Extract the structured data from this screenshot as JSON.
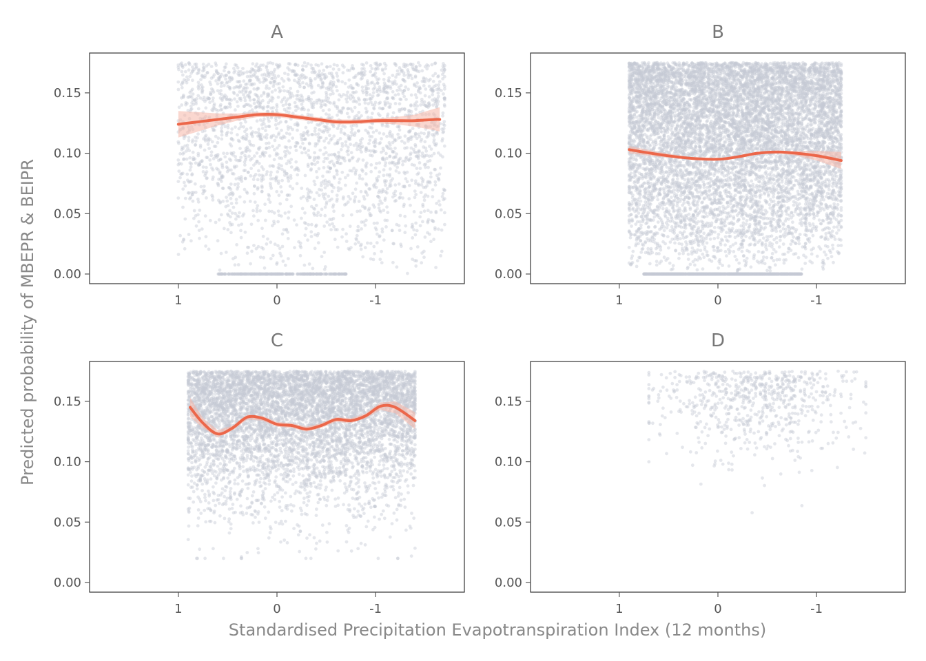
{
  "colors": {
    "points": "#c5c9d4",
    "smooth_line": "#ec674a",
    "ribbon": "#f6b7a7",
    "panel_border": "#333333",
    "tick": "#555555"
  },
  "chart_data": {
    "type": "scatter",
    "layout": "2x2 facets",
    "xlabel": "Standardised Precipitation Evapotranspiration Index (12 months)",
    "ylabel": "Predicted probability of MBEPR & BEIPR",
    "x_reversed": true,
    "xlim": [
      1.9,
      -1.9
    ],
    "ylim": [
      -0.008,
      0.183
    ],
    "x_ticks": [
      1,
      0,
      -1
    ],
    "x_tick_labels": [
      "1",
      "0",
      "-1"
    ],
    "y_ticks": [
      0,
      0.05,
      0.1,
      0.15
    ],
    "y_tick_labels": [
      "0.00",
      "0.05",
      "0.10",
      "0.15"
    ],
    "grid": false,
    "panels": [
      {
        "label": "A",
        "point_density": "moderate",
        "point_x_range": [
          1.0,
          -1.7
        ],
        "point_y_range": [
          0.0,
          0.175
        ],
        "smooth": {
          "x": [
            1.0,
            0.8,
            0.6,
            0.4,
            0.2,
            0.0,
            -0.2,
            -0.4,
            -0.6,
            -0.8,
            -1.0,
            -1.2,
            -1.4,
            -1.6,
            -1.65
          ],
          "y": [
            0.124,
            0.126,
            0.128,
            0.13,
            0.132,
            0.132,
            0.13,
            0.128,
            0.126,
            0.126,
            0.127,
            0.127,
            0.127,
            0.128,
            0.128
          ],
          "ci_halfwidth": [
            0.011,
            0.008,
            0.005,
            0.003,
            0.002,
            0.002,
            0.002,
            0.002,
            0.002,
            0.002,
            0.002,
            0.003,
            0.005,
            0.009,
            0.01
          ]
        }
      },
      {
        "label": "B",
        "point_density": "very high",
        "point_x_range": [
          0.9,
          -1.25
        ],
        "point_y_range": [
          0.0,
          0.175
        ],
        "smooth": {
          "x": [
            0.9,
            0.6,
            0.3,
            0.0,
            -0.2,
            -0.4,
            -0.6,
            -0.8,
            -1.0,
            -1.25
          ],
          "y": [
            0.103,
            0.099,
            0.096,
            0.095,
            0.097,
            0.1,
            0.101,
            0.1,
            0.098,
            0.094
          ],
          "ci_halfwidth": [
            0.003,
            0.002,
            0.001,
            0.001,
            0.001,
            0.001,
            0.001,
            0.002,
            0.004,
            0.007
          ]
        }
      },
      {
        "label": "C",
        "point_density": "high",
        "point_x_range": [
          0.9,
          -1.4
        ],
        "point_y_range": [
          0.02,
          0.175
        ],
        "smooth": {
          "x": [
            0.88,
            0.75,
            0.6,
            0.45,
            0.3,
            0.15,
            0.0,
            -0.15,
            -0.3,
            -0.45,
            -0.6,
            -0.75,
            -0.9,
            -1.05,
            -1.2,
            -1.4
          ],
          "y": [
            0.145,
            0.132,
            0.123,
            0.128,
            0.137,
            0.136,
            0.131,
            0.13,
            0.127,
            0.13,
            0.135,
            0.134,
            0.138,
            0.146,
            0.145,
            0.134
          ],
          "ci_halfwidth": [
            0.008,
            0.004,
            0.003,
            0.002,
            0.002,
            0.002,
            0.002,
            0.002,
            0.002,
            0.002,
            0.002,
            0.002,
            0.002,
            0.003,
            0.005,
            0.007
          ]
        }
      },
      {
        "label": "D",
        "point_density": "sparse",
        "point_x_range": [
          0.7,
          -1.5
        ],
        "point_y_range": [
          0.02,
          0.175
        ],
        "smooth": null
      }
    ]
  }
}
